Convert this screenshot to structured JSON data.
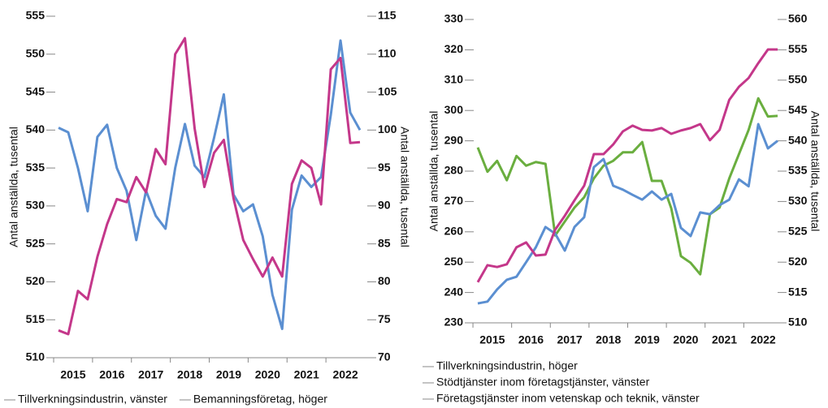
{
  "chart_data": [
    {
      "type": "line",
      "categories": [
        "2015",
        null,
        null,
        null,
        "2016",
        null,
        null,
        null,
        "2017",
        null,
        null,
        null,
        "2018",
        null,
        null,
        null,
        "2019",
        null,
        null,
        null,
        "2020",
        null,
        null,
        null,
        "2021",
        null,
        null,
        null,
        "2022",
        null,
        null,
        null
      ],
      "ylabel": "Antal anställda, tusental",
      "y2label": "Antal anställda, tusental",
      "ylim": [
        510,
        555
      ],
      "yticks": [
        510,
        515,
        520,
        525,
        530,
        535,
        540,
        545,
        550,
        555
      ],
      "y2lim": [
        70,
        115
      ],
      "y2ticks": [
        70,
        75,
        80,
        85,
        90,
        95,
        100,
        105,
        110,
        115
      ],
      "grid": false,
      "legend": "bottom",
      "series": [
        {
          "name": "Tillverkningsindustrin, vänster",
          "color": "#5b8fd1",
          "values": [
            540.3,
            539.7,
            535,
            529.3,
            539.1,
            540.7,
            535,
            532,
            525.5,
            532,
            528.7,
            527,
            535,
            540.8,
            535.3,
            533.8,
            539,
            544.7,
            531.5,
            529.3,
            530.2,
            526,
            518.3,
            513.8,
            529.5,
            534,
            532.5,
            533.8,
            542,
            551.8,
            542.3,
            540
          ]
        },
        {
          "name": "Bemanningsföretag, höger",
          "color": "#c4378a",
          "axis": "y2",
          "values": [
            73.6,
            73.1,
            78.8,
            77.7,
            83.3,
            87.6,
            90.9,
            90.5,
            93.8,
            91.8,
            97.5,
            95.5,
            110,
            112.1,
            100.2,
            92.5,
            97,
            98.7,
            91,
            85.5,
            83,
            80.7,
            83.2,
            80.7,
            92.9,
            96,
            95,
            90.2,
            108,
            109.5,
            98.3,
            98.4
          ]
        }
      ]
    },
    {
      "type": "line",
      "categories": [
        "2015",
        null,
        null,
        null,
        "2016",
        null,
        null,
        null,
        "2017",
        null,
        null,
        null,
        "2018",
        null,
        null,
        null,
        "2019",
        null,
        null,
        null,
        "2020",
        null,
        null,
        null,
        "2021",
        null,
        null,
        null,
        "2022",
        null,
        null,
        null
      ],
      "ylabel": "Antal anställda, tusental",
      "y2label": "Antal anställda, tusental",
      "ylim": [
        230,
        330
      ],
      "yticks": [
        230,
        240,
        250,
        260,
        270,
        280,
        290,
        300,
        310,
        320,
        330
      ],
      "y2lim": [
        510,
        560
      ],
      "y2ticks": [
        510,
        515,
        520,
        525,
        530,
        535,
        540,
        545,
        550,
        555,
        560
      ],
      "grid": false,
      "legend": "bottom",
      "series": [
        {
          "name": "Tillverkningsindustrin, höger",
          "color": "#6aae3f",
          "axis": "y2",
          "values": [
            538.9,
            534.9,
            536.7,
            533.5,
            537.5,
            535.9,
            536.5,
            536.2,
            524.4,
            526.7,
            529,
            530.7,
            533.8,
            535.9,
            536.7,
            538.1,
            538.1,
            539.8,
            533.4,
            533.4,
            528.9,
            521,
            519.9,
            518,
            527.9,
            529,
            533.8,
            537.8,
            541.8,
            547,
            544,
            544.1
          ]
        },
        {
          "name": "Stödtjänster inom företagstjänster, vänster",
          "color": "#5b8fd1",
          "values": [
            236.4,
            237,
            241,
            244.2,
            245.2,
            250,
            254.9,
            261.6,
            259.4,
            253.8,
            261.6,
            264.8,
            281.3,
            284,
            275.2,
            273.9,
            272.2,
            270.6,
            273.3,
            270.6,
            272.5,
            261.3,
            258.6,
            266.4,
            265.8,
            268.8,
            270.6,
            277.3,
            275,
            295.5,
            287.5,
            290
          ]
        },
        {
          "name": "Företagstjänster inom vetenskap och teknik, vänster",
          "color": "#c4378a",
          "values": [
            243.4,
            249,
            248.4,
            249.3,
            254.9,
            256.5,
            252.2,
            252.5,
            260.7,
            265.3,
            270.4,
            275.2,
            285.6,
            285.6,
            288.8,
            293.1,
            295,
            293.6,
            293.4,
            294.2,
            292.3,
            293.4,
            294.2,
            295.5,
            290.2,
            293.6,
            303.5,
            307.8,
            310.7,
            315.6,
            320.1,
            320.1
          ]
        }
      ]
    }
  ]
}
